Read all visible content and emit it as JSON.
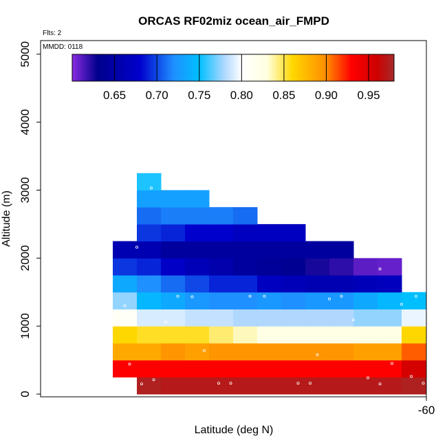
{
  "chart_data": {
    "type": "heatmap",
    "title": "ORCAS RF02miz ocean_air_FMPD",
    "flights_note": "Flts: 2",
    "date_note": "MMDD: 0118",
    "xlabel": "Latitude (deg N)",
    "ylabel": "Altitude (m)",
    "x_tick_labels": [
      "-60"
    ],
    "y_ticks": [
      0,
      1000,
      2000,
      3000,
      4000,
      5000
    ],
    "ylim": [
      -40,
      5200
    ],
    "colorbar": {
      "range": [
        0.6,
        0.98
      ],
      "tick_values": [
        0.65,
        0.7,
        0.75,
        0.8,
        0.85,
        0.9,
        0.95
      ],
      "tick_labels": [
        "0.65",
        "0.70",
        "0.75",
        "0.80",
        "0.85",
        "0.90",
        "0.95"
      ],
      "stops": [
        [
          0.6,
          "#8a2be2"
        ],
        [
          0.63,
          "#00008b"
        ],
        [
          0.68,
          "#0000cd"
        ],
        [
          0.72,
          "#1e90ff"
        ],
        [
          0.75,
          "#00bfff"
        ],
        [
          0.78,
          "#b0d8ff"
        ],
        [
          0.8,
          "#ffffff"
        ],
        [
          0.83,
          "#ffffe0"
        ],
        [
          0.86,
          "#ffd700"
        ],
        [
          0.9,
          "#ff8c00"
        ],
        [
          0.93,
          "#ff0000"
        ],
        [
          0.96,
          "#cd0000"
        ],
        [
          0.98,
          "#a52a2a"
        ]
      ]
    },
    "altitude_bins_m": [
      0,
      250,
      500,
      750,
      1000,
      1250,
      1500,
      1750,
      2000,
      2250,
      2500,
      2750,
      3000
    ],
    "column_count": 13,
    "grid": [
      [
        null,
        0.975,
        0.972,
        0.972,
        0.972,
        0.972,
        0.972,
        0.972,
        0.972,
        0.972,
        0.972,
        0.972,
        0.975
      ],
      [
        0.93,
        0.93,
        0.93,
        0.93,
        0.93,
        0.93,
        0.93,
        0.93,
        0.93,
        0.93,
        0.93,
        0.93,
        0.955
      ],
      [
        0.885,
        0.885,
        0.895,
        0.89,
        0.895,
        0.895,
        0.895,
        0.895,
        0.895,
        0.895,
        0.89,
        0.89,
        0.91
      ],
      [
        0.86,
        0.855,
        0.855,
        0.855,
        0.845,
        0.835,
        0.825,
        0.825,
        0.825,
        0.825,
        0.825,
        0.825,
        0.86
      ],
      [
        0.81,
        0.79,
        0.79,
        0.785,
        0.785,
        0.78,
        0.78,
        0.78,
        0.78,
        0.78,
        0.775,
        0.775,
        0.795
      ],
      [
        0.775,
        0.745,
        0.735,
        0.725,
        0.72,
        0.72,
        0.725,
        0.72,
        0.725,
        0.725,
        0.735,
        0.745,
        0.75
      ],
      [
        0.735,
        0.72,
        0.71,
        0.7,
        0.69,
        0.69,
        0.67,
        0.665,
        0.66,
        0.66,
        0.665,
        0.668,
        null
      ],
      [
        0.695,
        0.69,
        0.675,
        0.665,
        0.655,
        0.645,
        0.64,
        0.635,
        0.625,
        0.62,
        0.61,
        0.608,
        null
      ],
      [
        0.66,
        0.66,
        0.645,
        0.645,
        0.645,
        0.645,
        0.645,
        0.645,
        0.645,
        0.645,
        null,
        null,
        null
      ],
      [
        null,
        0.695,
        0.69,
        0.68,
        0.68,
        0.67,
        0.67,
        0.67,
        null,
        null,
        null,
        null,
        null
      ],
      [
        null,
        0.71,
        0.715,
        0.715,
        0.715,
        0.71,
        null,
        null,
        null,
        null,
        null,
        null,
        null
      ],
      [
        null,
        0.73,
        0.73,
        0.73,
        null,
        null,
        null,
        null,
        null,
        null,
        null,
        null,
        null
      ],
      [
        null,
        0.755,
        null,
        null,
        null,
        null,
        null,
        null,
        null,
        null,
        null,
        null,
        null
      ]
    ],
    "sample_points": [
      {
        "col": 1.2,
        "alt": 150
      },
      {
        "col": 1.7,
        "alt": 210
      },
      {
        "col": 4.4,
        "alt": 160
      },
      {
        "col": 4.9,
        "alt": 160
      },
      {
        "col": 7.7,
        "alt": 160
      },
      {
        "col": 8.2,
        "alt": 160
      },
      {
        "col": 10.6,
        "alt": 240
      },
      {
        "col": 11.1,
        "alt": 150
      },
      {
        "col": 12.4,
        "alt": 260
      },
      {
        "col": 12.9,
        "alt": 160
      },
      {
        "col": 0.7,
        "alt": 440
      },
      {
        "col": 11.6,
        "alt": 450
      },
      {
        "col": 3.8,
        "alt": 640
      },
      {
        "col": 8.5,
        "alt": 580
      },
      {
        "col": 2.2,
        "alt": 1060
      },
      {
        "col": 10.0,
        "alt": 1090
      },
      {
        "col": 0.5,
        "alt": 1300
      },
      {
        "col": 2.7,
        "alt": 1440
      },
      {
        "col": 3.3,
        "alt": 1430
      },
      {
        "col": 5.7,
        "alt": 1440
      },
      {
        "col": 6.3,
        "alt": 1440
      },
      {
        "col": 9.0,
        "alt": 1400
      },
      {
        "col": 9.5,
        "alt": 1440
      },
      {
        "col": 12.0,
        "alt": 1320
      },
      {
        "col": 12.6,
        "alt": 1440
      },
      {
        "col": 11.1,
        "alt": 1840
      },
      {
        "col": 1.0,
        "alt": 2160
      },
      {
        "col": 1.6,
        "alt": 3030
      }
    ]
  }
}
